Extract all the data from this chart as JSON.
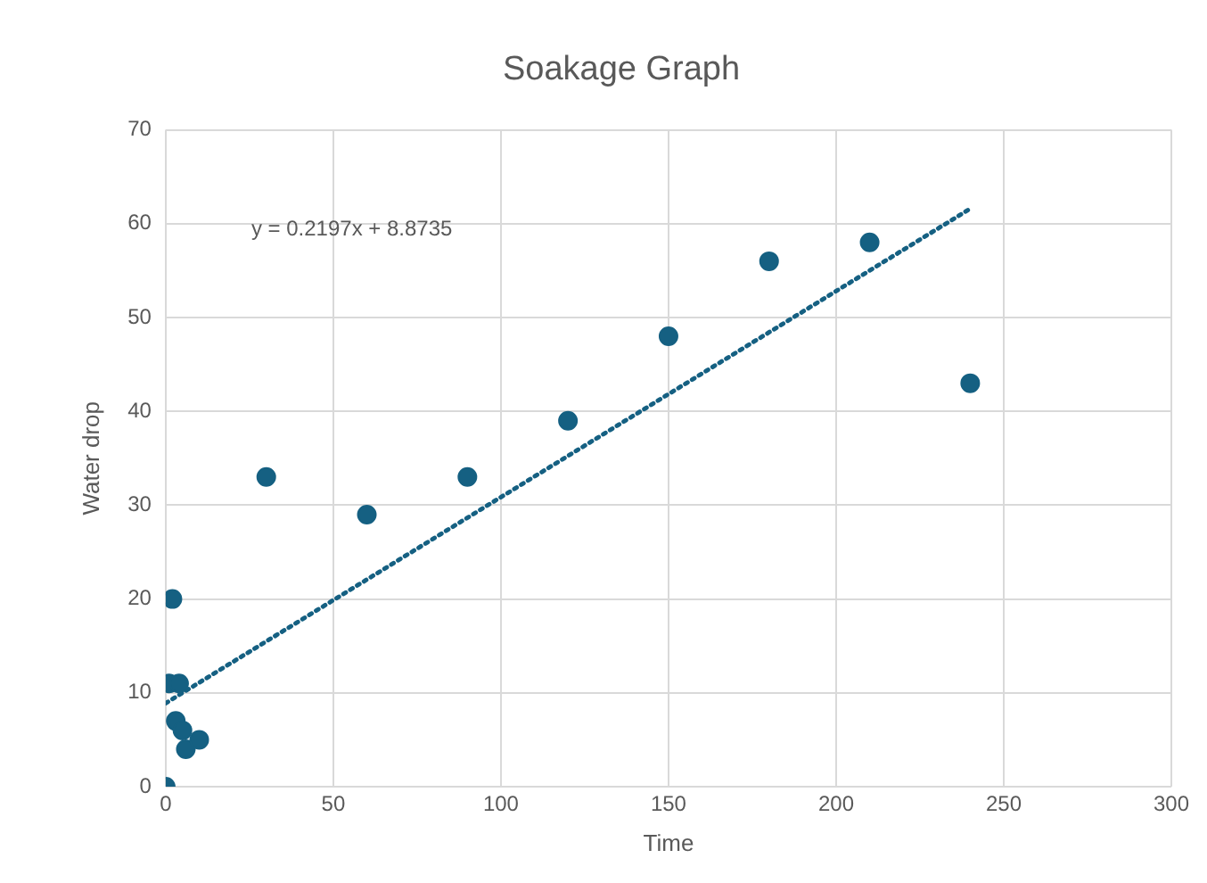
{
  "chart_data": {
    "type": "scatter",
    "title": "Soakage Graph",
    "xlabel": "Time",
    "ylabel": "Water drop",
    "xlim": [
      0,
      300
    ],
    "xticks": [
      0,
      50,
      100,
      150,
      200,
      250,
      300
    ],
    "ylim": [
      0,
      70
    ],
    "yticks": [
      0,
      10,
      20,
      30,
      40,
      50,
      60,
      70
    ],
    "grid": true,
    "legend": false,
    "marker": "circle",
    "series": [
      {
        "color": "#156082",
        "x": [
          0,
          1,
          2,
          3,
          4,
          5,
          6,
          7,
          10,
          30,
          60,
          90,
          120,
          150,
          180,
          210,
          240
        ],
        "values": [
          0,
          11,
          20,
          7,
          11,
          6,
          4,
          null,
          5,
          33,
          29,
          33,
          39,
          48,
          56,
          58,
          43
        ]
      },
      {
        "type": "line",
        "color": "#156082",
        "line_style": "dotted",
        "marker": "none",
        "x": [
          0,
          240
        ],
        "values": [
          8.9,
          61.6
        ]
      }
    ],
    "annotations": [
      "y = 0.2197x + 8.8735"
    ]
  }
}
